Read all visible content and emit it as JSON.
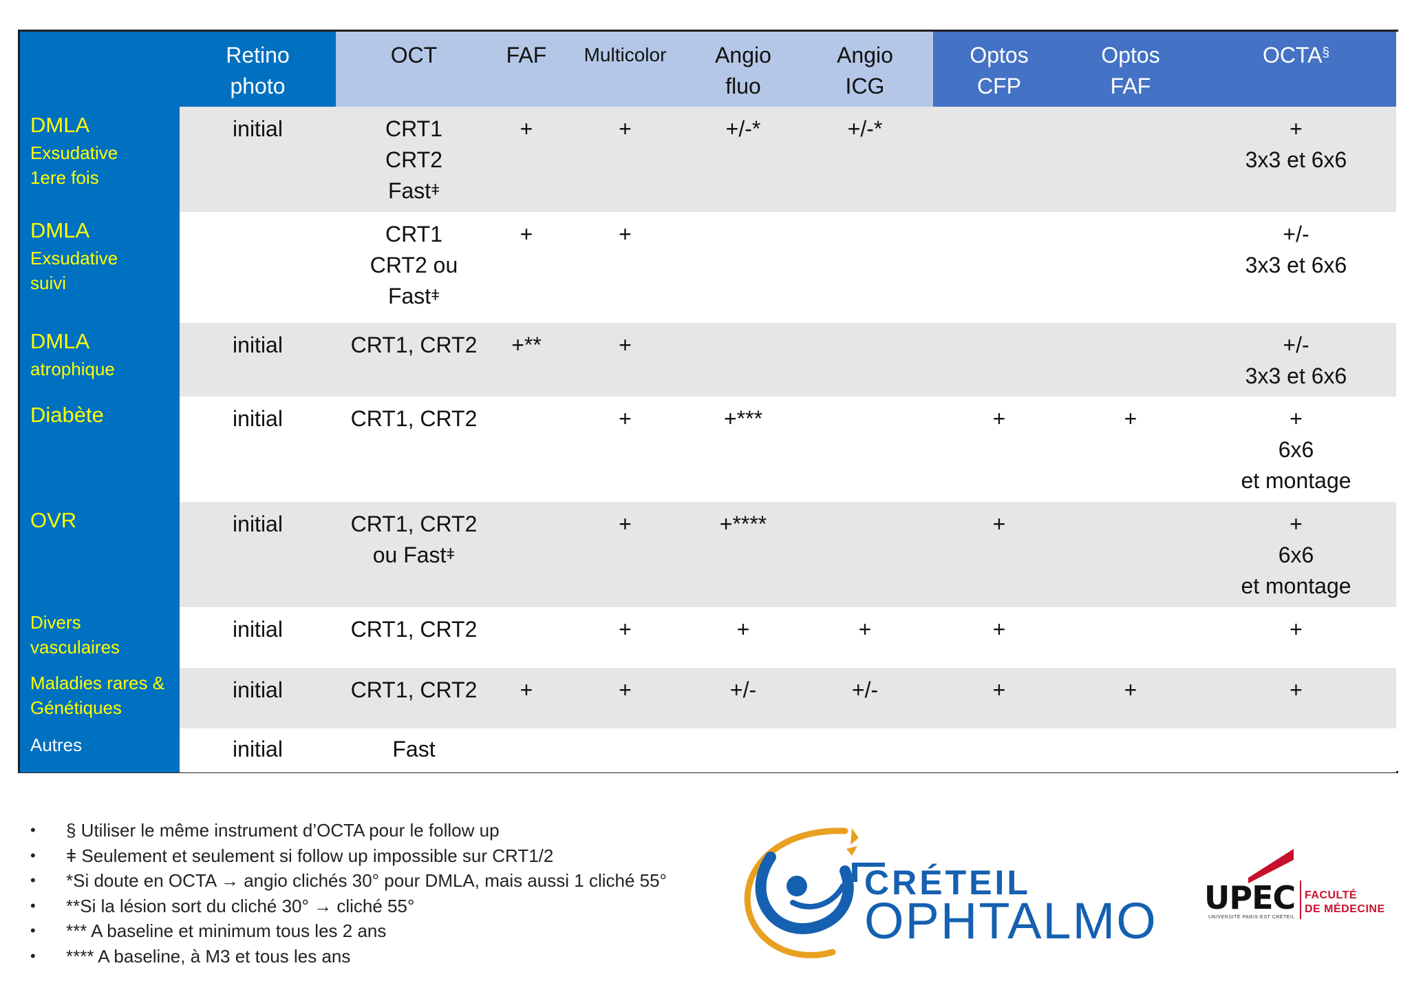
{
  "table": {
    "headers": [
      {
        "line1": "",
        "line2": ""
      },
      {
        "line1": "Retino",
        "line2": "photo"
      },
      {
        "line1": "OCT",
        "line2": ""
      },
      {
        "line1": "FAF",
        "line2": ""
      },
      {
        "line1": "Multicolor",
        "line2": ""
      },
      {
        "line1": "Angio",
        "line2": "fluo"
      },
      {
        "line1": "Angio",
        "line2": "ICG"
      },
      {
        "line1": "Optos",
        "line2": "CFP"
      },
      {
        "line1": "Optos",
        "line2": "FAF"
      },
      {
        "line1": "OCTA",
        "line2": "",
        "sup": "§"
      }
    ],
    "header_colors": {
      "dark_blue": "#0070c0",
      "light_blue": "#b4c7e7",
      "mid_blue": "#4472c4",
      "label_text": "#ffff00",
      "gray_row": "#e6e6e6"
    },
    "rows": [
      {
        "label": [
          "DMLA",
          "Exsudative",
          "1ere fois"
        ],
        "retino": "initial",
        "oct": [
          "CRT1",
          "CRT2",
          "Fast"
        ],
        "faf": "+",
        "multicolor": "+",
        "angio_fluo": "+/-*",
        "angio_icg": "+/-*",
        "optos_cfp": "",
        "optos_faf": "",
        "octa": [
          "+",
          "3x3 et 6x6"
        ]
      },
      {
        "label": [
          "DMLA",
          "Exsudative",
          "suivi"
        ],
        "retino": "",
        "oct": [
          "CRT1",
          "CRT2 ou",
          "Fast"
        ],
        "faf": "+",
        "multicolor": "+",
        "angio_fluo": "",
        "angio_icg": "",
        "optos_cfp": "",
        "optos_faf": "",
        "octa": [
          "+/-",
          "3x3 et 6x6"
        ]
      },
      {
        "label": [
          "DMLA",
          "atrophique"
        ],
        "retino": "initial",
        "oct": [
          "CRT1, CRT2"
        ],
        "faf": "+**",
        "multicolor": "+",
        "angio_fluo": "",
        "angio_icg": "",
        "optos_cfp": "",
        "optos_faf": "",
        "octa": [
          "+/-",
          "3x3 et 6x6"
        ]
      },
      {
        "label": [
          "Diabète"
        ],
        "retino": "initial",
        "oct": [
          "CRT1, CRT2"
        ],
        "faf": "",
        "multicolor": "+",
        "angio_fluo": "+***",
        "angio_icg": "",
        "optos_cfp": "+",
        "optos_faf": "+",
        "octa": [
          "+",
          "6x6",
          "et montage"
        ]
      },
      {
        "label": [
          "OVR"
        ],
        "retino": "initial",
        "oct": [
          "CRT1, CRT2",
          "ou Fast"
        ],
        "faf": "",
        "multicolor": "+",
        "angio_fluo": "+****",
        "angio_icg": "",
        "optos_cfp": "+",
        "optos_faf": "",
        "octa": [
          "+",
          "6x6",
          "et montage"
        ]
      },
      {
        "label": [
          "Divers",
          "vasculaires"
        ],
        "retino": "initial",
        "oct": [
          "CRT1, CRT2"
        ],
        "faf": "",
        "multicolor": "+",
        "angio_fluo": "+",
        "angio_icg": "+",
        "optos_cfp": "+",
        "optos_faf": "",
        "octa": [
          "+"
        ]
      },
      {
        "label": [
          "Maladies rares &",
          "Génétiques"
        ],
        "retino": "initial",
        "oct": [
          "CRT1, CRT2"
        ],
        "faf": "+",
        "multicolor": "+",
        "angio_fluo": "+/-",
        "angio_icg": "+/-",
        "optos_cfp": "+",
        "optos_faf": "+",
        "octa": [
          "+"
        ]
      },
      {
        "label": [
          "Autres"
        ],
        "retino": "initial",
        "oct": [
          "Fast"
        ],
        "faf": "",
        "multicolor": "",
        "angio_fluo": "",
        "angio_icg": "",
        "optos_cfp": "",
        "optos_faf": "",
        "octa": [
          ""
        ]
      }
    ],
    "glyph": "ǂ"
  },
  "notes": [
    "§ Utiliser le même instrument d’OCTA pour le follow up",
    "ǂ Seulement et seulement si follow up impossible sur CRT1/2",
    "*Si doute en OCTA → angio clichés 30° pour DMLA, mais aussi 1 cliché 55°",
    "**Si la lésion sort du cliché 30° → cliché 55°",
    "*** A baseline et minimum tous les 2 ans",
    "****  A baseline, à M3 et tous les ans"
  ],
  "bullet": "•",
  "logos": {
    "creteil_line1": "CRÉTEIL",
    "creteil_line2": "OPHTALMO",
    "upec_word": "UPEC",
    "upec_tagline": "UNIVERSITÉ PARIS-EST CRÉTEIL",
    "upec_faculty_line1": "FACULTÉ",
    "upec_faculty_line2": "DE MÉDECINE",
    "creteil_blue": "#1560b0",
    "creteil_orange": "#e8a020",
    "upec_red": "#c8102e"
  }
}
